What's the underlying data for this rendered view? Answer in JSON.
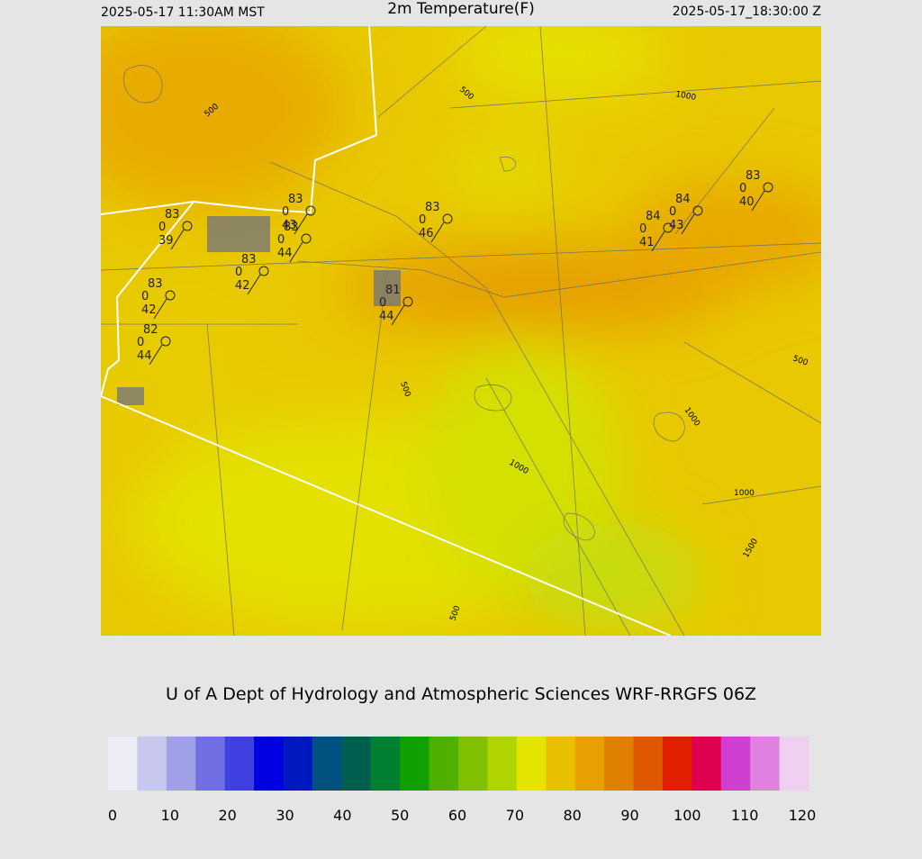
{
  "header": {
    "valid_local": "2025-05-17 11:30AM MST",
    "title": "2m Temperature(F)",
    "valid_utc": "2025-05-17_18:30:00 Z"
  },
  "stations": [
    {
      "temp": "83",
      "wind": "0",
      "dew": "39"
    },
    {
      "temp": "83",
      "wind": "0",
      "dew": "43"
    },
    {
      "temp": "83",
      "wind": "0",
      "dew": "44"
    },
    {
      "temp": "83",
      "wind": "0",
      "dew": "42"
    },
    {
      "temp": "83",
      "wind": "0",
      "dew": "42"
    },
    {
      "temp": "82",
      "wind": "0",
      "dew": "44"
    },
    {
      "temp": "83",
      "wind": "0",
      "dew": "46"
    },
    {
      "temp": "81",
      "wind": "0",
      "dew": "44"
    },
    {
      "temp": "83",
      "wind": "0",
      "dew": "40"
    },
    {
      "temp": "84",
      "wind": "0",
      "dew": "43"
    },
    {
      "temp": "84",
      "wind": "0",
      "dew": "41"
    }
  ],
  "contour_labels": [
    "500",
    "500",
    "500",
    "500",
    "500",
    "1000",
    "1000",
    "1000",
    "1000",
    "1500"
  ],
  "credit": "U of A Dept of Hydrology and Atmospheric Sciences WRF-RRGFS 06Z",
  "colorbar": {
    "ticks": [
      0,
      10,
      20,
      30,
      40,
      50,
      60,
      70,
      80,
      90,
      100,
      110,
      120
    ],
    "colors": [
      "#ececf4",
      "#c8c8ee",
      "#a0a0e8",
      "#7070e4",
      "#4040e0",
      "#0000e0",
      "#0018c0",
      "#005080",
      "#006050",
      "#008030",
      "#10a000",
      "#50b000",
      "#80c000",
      "#b0d400",
      "#e4e400",
      "#e8c000",
      "#e8a000",
      "#e08000",
      "#e05800",
      "#e02000",
      "#e00050",
      "#d040d0",
      "#e080e0",
      "#f0d0f0"
    ]
  }
}
